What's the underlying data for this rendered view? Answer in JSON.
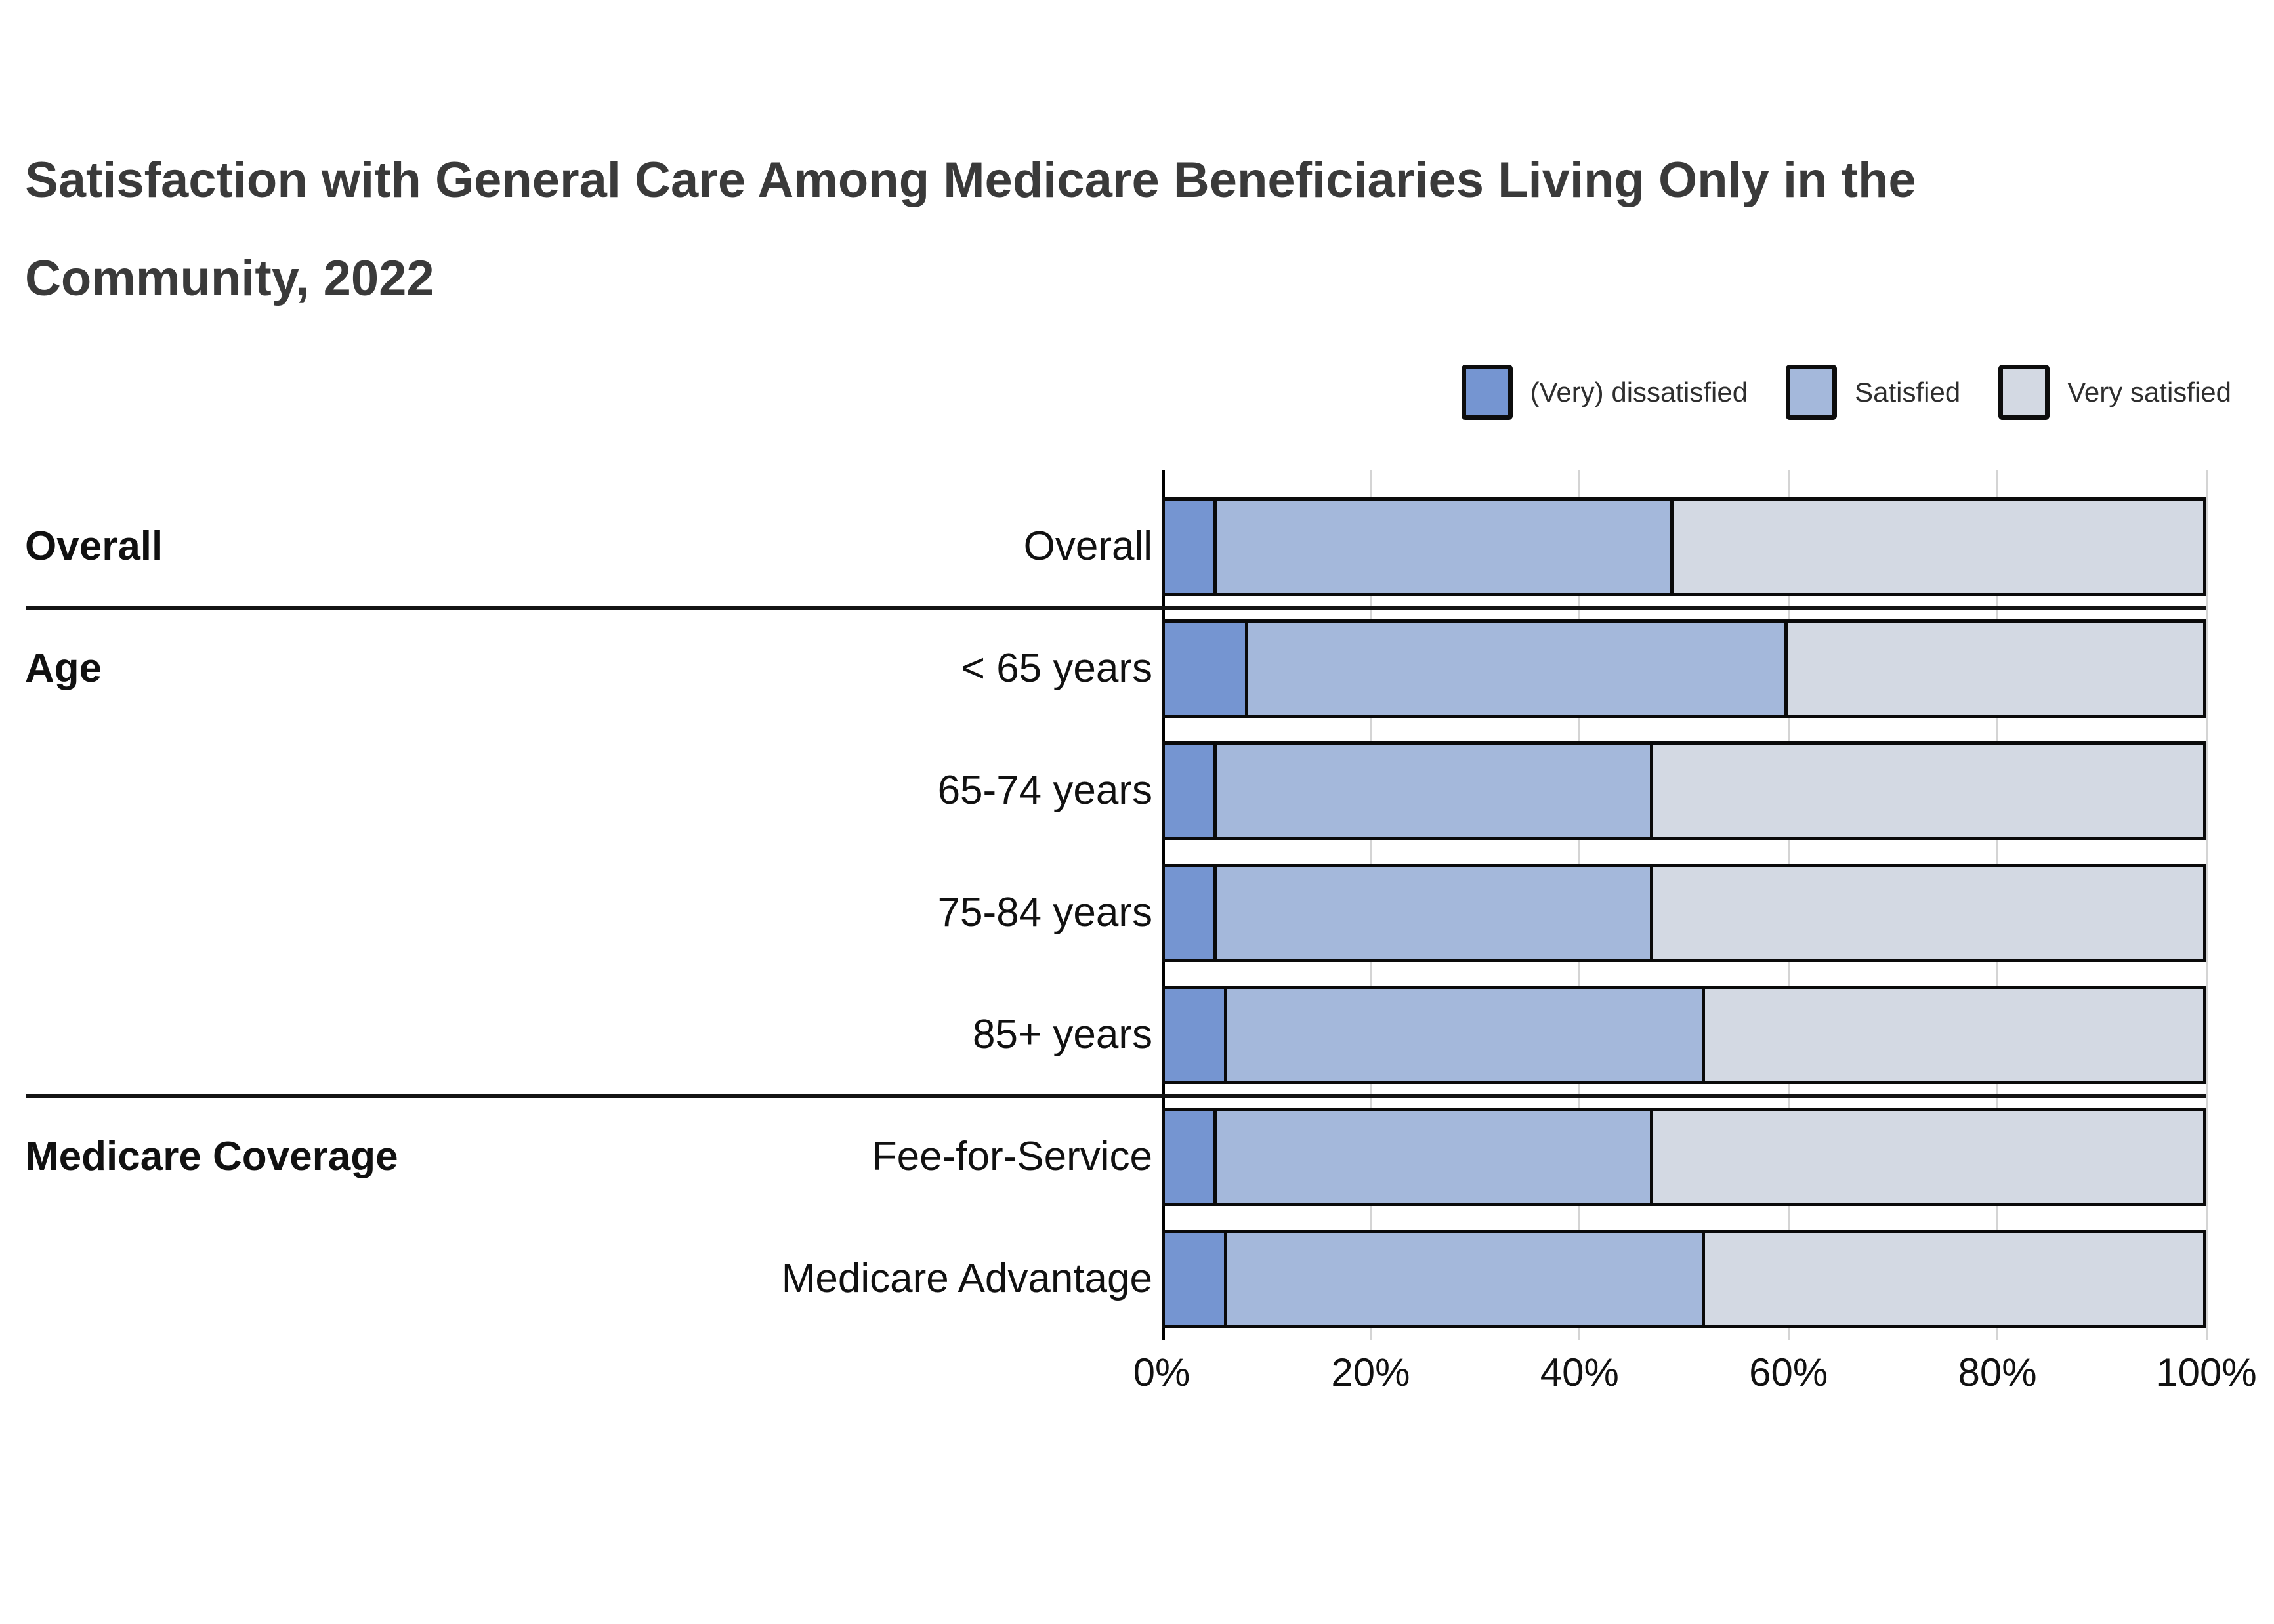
{
  "title": {
    "line1": "Satisfaction with General Care Among Medicare Beneficiaries Living Only in the",
    "line2": "Community, 2022"
  },
  "legend": [
    {
      "label": "(Very) dissatisfied",
      "color": "#7595d1"
    },
    {
      "label": "Satisfied",
      "color": "#a4b8db"
    },
    {
      "label": "Very satisfied",
      "color": "#d3d9e3"
    }
  ],
  "colors": {
    "dissatisfied": "#7595d1",
    "satisfied": "#a4b8db",
    "very_satisfied": "#d3d9e3",
    "bar_border": "#0a0a0a",
    "gridline": "#d4d4d4",
    "axis_line": "#000000",
    "title_text": "#3a3a3a"
  },
  "chart_data": {
    "type": "bar",
    "orientation": "horizontal",
    "stacked": true,
    "title": "Satisfaction with General Care Among Medicare Beneficiaries Living Only in the Community, 2022",
    "categories": [
      "Overall",
      "< 65 years",
      "65-74 years",
      "75-84 years",
      "85+ years",
      "Fee-for-Service",
      "Medicare Advantage"
    ],
    "groups": [
      {
        "label": "Overall",
        "first_row": 0,
        "rows": [
          0
        ]
      },
      {
        "label": "Age",
        "first_row": 1,
        "rows": [
          1,
          2,
          3,
          4
        ]
      },
      {
        "label": "Medicare Coverage",
        "first_row": 5,
        "rows": [
          5,
          6
        ]
      }
    ],
    "series": [
      {
        "name": "(Very) dissatisfied",
        "color": "#7595d1",
        "values": [
          5,
          8,
          5,
          5,
          6,
          5,
          6
        ]
      },
      {
        "name": "Satisfied",
        "color": "#a4b8db",
        "values": [
          44,
          52,
          42,
          42,
          46,
          42,
          46
        ]
      },
      {
        "name": "Very satisfied",
        "color": "#d3d9e3",
        "values": [
          51,
          40,
          53,
          53,
          48,
          53,
          48
        ]
      }
    ],
    "x_ticks": [
      "0%",
      "20%",
      "40%",
      "60%",
      "80%",
      "100%"
    ],
    "xlim": [
      0,
      100
    ],
    "grid": true,
    "legend_position": "top-right"
  }
}
